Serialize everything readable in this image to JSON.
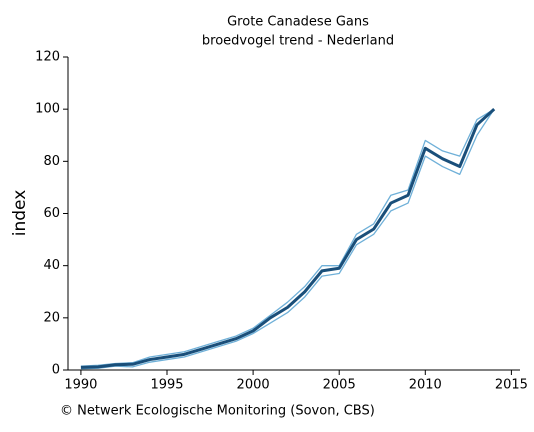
{
  "chart_data": {
    "type": "line",
    "title": "Grote Canadese Gans",
    "subtitle": "broedvogel trend - Nederland",
    "ylabel": "index",
    "footer": "© Netwerk Ecologische Monitoring (Sovon, CBS)",
    "x": [
      1990,
      1991,
      1992,
      1993,
      1994,
      1995,
      1996,
      1997,
      1998,
      1999,
      2000,
      2001,
      2002,
      2003,
      2004,
      2005,
      2006,
      2007,
      2008,
      2009,
      2010,
      2011,
      2012,
      2013,
      2014
    ],
    "series": [
      {
        "color": "#6fb0d8",
        "values": [
          1.5,
          1.8,
          2.5,
          2.8,
          5,
          6,
          7,
          9,
          11,
          13,
          16,
          21,
          26,
          32,
          40,
          40,
          52,
          56,
          67,
          69,
          88,
          84,
          82,
          96,
          100
        ]
      },
      {
        "color": "#6fb0d8",
        "values": [
          0.5,
          0.7,
          1.5,
          1.2,
          3,
          4,
          5,
          7,
          9,
          11,
          14,
          18,
          22,
          28,
          36,
          37,
          48,
          52,
          61,
          64,
          82,
          78,
          75,
          90,
          100
        ]
      },
      {
        "color": "#1a4f7a",
        "values": [
          1,
          1.2,
          2,
          2.2,
          4,
          5,
          6,
          8,
          10,
          12,
          15,
          20,
          24,
          30,
          38,
          39,
          50,
          54,
          64,
          67,
          85,
          81,
          78,
          94,
          100
        ]
      }
    ],
    "xlim": [
      1989.25,
      2015.5
    ],
    "xticks": [
      1990,
      1995,
      2000,
      2005,
      2010,
      2015
    ],
    "ylim": [
      0,
      120
    ],
    "yticks": [
      0,
      20,
      40,
      60,
      80,
      100,
      120
    ]
  }
}
